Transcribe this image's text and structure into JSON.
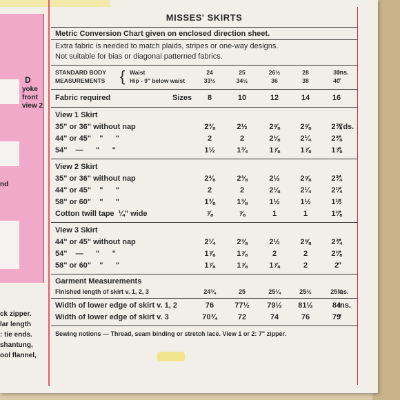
{
  "side": {
    "d_letter": "D",
    "d_text": "yoke front view 2",
    "and_text": "nd",
    "bottom_text": [
      "ck zipper.",
      "lar length",
      ": tie ends.",
      "",
      "shantung,",
      "ool flannel,"
    ]
  },
  "title": "MISSES' SKIRTS",
  "intro": {
    "metric_note": "Metric Conversion Chart given on enclosed direction sheet.",
    "extra_fabric": "Extra fabric is needed to match plaids, stripes or one-way designs.",
    "not_suitable": "Not suitable for bias or diagonal patterned fabrics."
  },
  "body_measurements": {
    "label_1": "STANDARD BODY",
    "label_2": "MEASUREMENTS",
    "waist_label": "Waist",
    "hip_label": "Hip - 9\" below waist",
    "waist": [
      "24",
      "25",
      "26½",
      "28",
      "30"
    ],
    "hip": [
      "33½",
      "34½",
      "36",
      "38",
      "40"
    ],
    "unit": "Ins.",
    "unit_2": "\""
  },
  "fabric_required": {
    "label": "Fabric required",
    "sizes_label": "Sizes",
    "sizes": [
      "8",
      "10",
      "12",
      "14",
      "16"
    ]
  },
  "views": [
    {
      "title": "View 1  Skirt",
      "rows": [
        {
          "label": "35\" or 36\" without nap",
          "values": [
            "2⅜",
            "2½",
            "2⅝",
            "2⅝",
            "2¾"
          ],
          "unit": "Yds."
        },
        {
          "label": "44\" or 45\"    \"      \"",
          "values": [
            "2",
            "2",
            "2⅛",
            "2¼",
            "2⅜"
          ],
          "unit": "\""
        },
        {
          "label": "54\"    —      \"      \"",
          "values": [
            "1½",
            "1¾",
            "1⅞",
            "1⅞",
            "1⅞"
          ],
          "unit": "\""
        }
      ]
    },
    {
      "title": "View 2  Skirt",
      "rows": [
        {
          "label": "35\" or 36\" without nap",
          "values": [
            "2⅜",
            "2⅜",
            "2½",
            "2⅝",
            "2¾"
          ],
          "unit": "\""
        },
        {
          "label": "44\" or 45\"    \"      \"",
          "values": [
            "2",
            "2",
            "2⅛",
            "2¼",
            "2¼"
          ],
          "unit": "\""
        },
        {
          "label": "58\" or 60\"    \"      \"",
          "values": [
            "1⅜",
            "1⅜",
            "1½",
            "1½",
            "1½"
          ],
          "unit": "\""
        },
        {
          "label": "Cotton twill tape  ¼\" wide",
          "values": [
            "⅞",
            "⅞",
            "1",
            "1",
            "1⅛"
          ],
          "unit": "\""
        }
      ]
    },
    {
      "title": "View 3  Skirt",
      "rows": [
        {
          "label": "44\" or 45\" without nap",
          "values": [
            "2¼",
            "2⅜",
            "2½",
            "2⅝",
            "2¾"
          ],
          "unit": "\""
        },
        {
          "label": "54\"    —      \"      \"",
          "values": [
            "1⅞",
            "1⅞",
            "2",
            "2",
            "2⅛"
          ],
          "unit": "\""
        },
        {
          "label": "58\" or 60\"    \"      \"",
          "values": [
            "1⅞",
            "1⅞",
            "1⅞",
            "2",
            "2"
          ],
          "unit": "\""
        }
      ]
    }
  ],
  "garment": {
    "title": "Garment Measurements",
    "finished_label": "Finished length of skirt v. 1, 2, 3",
    "finished": [
      "24¾",
      "25",
      "25¼",
      "25½",
      "25¾"
    ],
    "finished_unit": "Ins.",
    "width12_label": "Width of lower edge of skirt v. 1, 2",
    "width12": [
      "76",
      "77½",
      "79½",
      "81½",
      "84"
    ],
    "width12_unit": "Ins.",
    "width3_label": "Width of lower edge of skirt v. 3",
    "width3": [
      "70¾",
      "72",
      "74",
      "76",
      "79"
    ],
    "width3_unit": "\""
  },
  "notions": "Sewing notions — Thread, seam binding or stretch lace. View 1 or 2: 7\" zipper.",
  "colors": {
    "pink": "#f0a9c8",
    "red_rule": "#e05a6b",
    "paper": "#f1efe8"
  }
}
